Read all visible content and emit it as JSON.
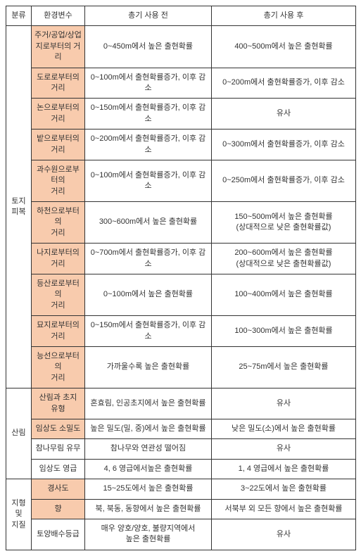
{
  "headers": {
    "category": "분류",
    "env_var": "환경변수",
    "before": "총기 사용 전",
    "after": "총기 사용 후"
  },
  "sections": [
    {
      "category": "토지\n피복",
      "rows": [
        {
          "env": "주거/공업/상업\n지로부터의 거리",
          "before": "0~450m에서 높은 출현확률",
          "after": "400~500m에서 높은 출현확률"
        },
        {
          "env": "도로로부터의\n거리",
          "before": "0~100m에서 출현확률증가, 이후 감소",
          "after": "0~200m에서 출현확률증가, 이후 감소"
        },
        {
          "env": "논으로부터의\n거리",
          "before": "0~150m에서 출현확률증가, 이후 감소",
          "after": "유사"
        },
        {
          "env": "밭으로부터의\n거리",
          "before": "0~200m에서 출현확률증가, 이후 감소",
          "after": "0~300m에서 출현확률증가, 이후 감소"
        },
        {
          "env": "과수원으로부터의\n거리",
          "before": "0~100m에서 출현확률증가, 이후 감소",
          "after": "0~250m에서 출현확률증가, 이후 감소"
        },
        {
          "env": "하천으로부터의\n거리",
          "before": "300~600m에서 높은 출현확률",
          "after": "150~500m에서 높은 출현확률\n(상대적으로 낮은 출현확률값)"
        },
        {
          "env": "나지로부터의\n거리",
          "before": "0~700m에서 출현확률증가, 이후 감소",
          "after": "200~600m에서 높은 출현확률\n(상대적으로 낮은 출현확률값)"
        },
        {
          "env": "등산로로부터의\n거리",
          "before": "0~100m에서 높은 출현확률",
          "after": "100~400m에서 높은 출현확률"
        },
        {
          "env": "묘지로부터의\n거리",
          "before": "0~150m에서 출현확률증가, 이후 감소",
          "after": "100~300m에서 높은 출현확률"
        },
        {
          "env": "능선으로부터의\n거리",
          "before": "가까울수록 높은 출현확률",
          "after": "25~75m에서 높은 출현확률"
        }
      ]
    },
    {
      "category": "산림",
      "rows": [
        {
          "env": "산림과 초지\n유형",
          "before": "혼효림, 인공초지에서 높은 출현확률",
          "after": "유사"
        },
        {
          "env": "임상도 소밀도",
          "before": "높은 밀도(밀, 중)에서 높은 출현확률",
          "after": "낮은 밀도(소)에서 높은 출현확률"
        },
        {
          "env": "참나무림 유무",
          "before": "참나무와 연관성 떨어짐",
          "after": "유사"
        },
        {
          "env": "임상도 영급",
          "before": "4, 6 영급에서높은 출현확률",
          "after": "1, 4 영급에서 높은 출현확률"
        }
      ]
    },
    {
      "category": "지형\n및\n지질",
      "rows": [
        {
          "env": "경사도",
          "before": "15~25도에서 높은 출현확률",
          "after": "3~22도에서 높은 출현확률"
        },
        {
          "env": "향",
          "before": "북, 북동, 동향에서 높은 출현확률",
          "after": "서북부 외 모든 향에서 높은 출현확률"
        },
        {
          "env": "토양배수등급",
          "before": "매우 양호/양호, 불량지역에서\n높은 출현확률",
          "after": "유사"
        }
      ]
    }
  ],
  "styling": {
    "env_bg": "#f8cbad",
    "border": "#333333",
    "font_size": 11
  }
}
